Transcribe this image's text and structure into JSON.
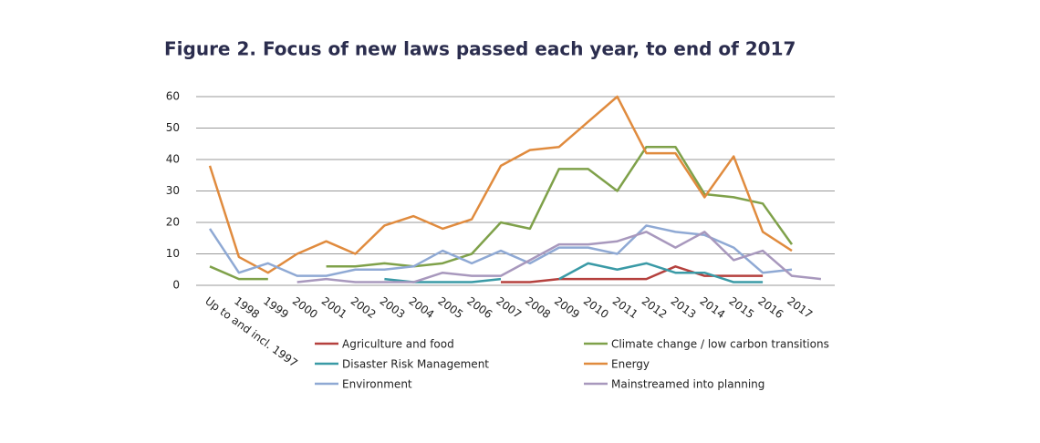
{
  "chart_data": {
    "type": "line",
    "title": "Figure 2. Focus of new laws passed each year, to end of 2017",
    "categories": [
      "Up to and incl. 1997",
      "1998",
      "1999",
      "2000",
      "2001",
      "2002",
      "2003",
      "2004",
      "2005",
      "2006",
      "2007",
      "2008",
      "2009",
      "2010",
      "2011",
      "2012",
      "2013",
      "2014",
      "2015",
      "2016",
      "2017",
      null
    ],
    "series": [
      {
        "name": "Agriculture and food",
        "color": "#b5413e",
        "values": [
          null,
          null,
          null,
          null,
          null,
          null,
          null,
          null,
          null,
          null,
          1,
          1,
          2,
          2,
          2,
          2,
          6,
          3,
          3,
          3,
          null,
          null
        ]
      },
      {
        "name": "Climate change / low carbon transitions",
        "color": "#7fa14a",
        "values": [
          6,
          2,
          2,
          null,
          6,
          6,
          7,
          6,
          7,
          10,
          20,
          18,
          37,
          37,
          30,
          44,
          44,
          29,
          28,
          26,
          13,
          null
        ]
      },
      {
        "name": "Disaster Risk Management",
        "color": "#3a9aa6",
        "values": [
          null,
          null,
          null,
          null,
          null,
          null,
          2,
          1,
          1,
          1,
          2,
          null,
          2,
          7,
          5,
          7,
          4,
          4,
          1,
          1,
          null,
          null
        ]
      },
      {
        "name": "Energy",
        "color": "#e08b3e",
        "values": [
          38,
          9,
          4,
          10,
          14,
          10,
          19,
          22,
          18,
          21,
          38,
          43,
          44,
          52,
          60,
          42,
          42,
          28,
          41,
          17,
          11,
          null
        ]
      },
      {
        "name": "Environment",
        "color": "#8fa9d4",
        "values": [
          18,
          4,
          7,
          3,
          3,
          5,
          5,
          6,
          11,
          7,
          11,
          7,
          12,
          12,
          10,
          19,
          17,
          16,
          12,
          4,
          5,
          null
        ]
      },
      {
        "name": "Mainstreamed into planning",
        "color": "#a898bd",
        "values": [
          null,
          null,
          null,
          1,
          2,
          1,
          1,
          1,
          4,
          3,
          3,
          8,
          13,
          13,
          14,
          17,
          12,
          17,
          8,
          11,
          3,
          2
        ]
      }
    ],
    "ylim": [
      0,
      60
    ],
    "yticks": [
      0,
      10,
      20,
      30,
      40,
      50,
      60
    ],
    "grid": true
  }
}
